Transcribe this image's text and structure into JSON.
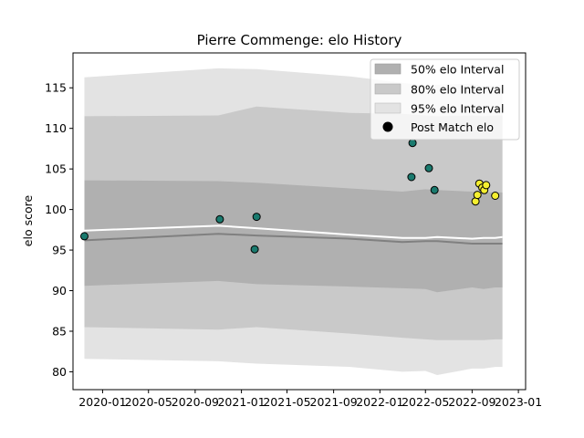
{
  "chart_data": {
    "type": "scatter",
    "title": "Pierre Commenge: elo History",
    "xlabel": "",
    "ylabel": "elo score",
    "xlim": [
      "2019-10-15",
      "2023-01-20"
    ],
    "ylim": [
      77.8,
      119.3
    ],
    "x_ticks": [
      "2020-01",
      "2020-05",
      "2020-09",
      "2021-01",
      "2021-05",
      "2021-09",
      "2022-01",
      "2022-05",
      "2022-09",
      "2023-01"
    ],
    "y_ticks": [
      80,
      85,
      90,
      95,
      100,
      105,
      110,
      115
    ],
    "legend_position": "top-right",
    "legend": [
      {
        "label": "50% elo Interval",
        "color": "#b0b0b0"
      },
      {
        "label": "80% elo Interval",
        "color": "#c9c9c9"
      },
      {
        "label": "95% elo Interval",
        "color": "#e3e3e3"
      },
      {
        "label": "Post Match elo",
        "color": "#000000"
      }
    ],
    "bands": {
      "x": [
        "2019-11-14",
        "2020-11-01",
        "2021-02-10",
        "2021-10-15",
        "2022-03-01",
        "2022-05-01",
        "2022-06-01",
        "2022-09-01",
        "2022-10-01",
        "2022-11-01",
        "2022-11-20"
      ],
      "p95_upper": [
        116.3,
        117.4,
        117.3,
        116.4,
        115.6,
        115.3,
        115.4,
        115.5,
        115.2,
        115.3,
        115.3
      ],
      "p95_lower": [
        81.6,
        81.3,
        81.0,
        80.6,
        80.0,
        80.1,
        79.6,
        80.4,
        80.4,
        80.6,
        80.6
      ],
      "p80_upper": [
        111.5,
        111.6,
        112.7,
        111.9,
        111.8,
        111.6,
        111.5,
        111.6,
        111.5,
        111.6,
        111.6
      ],
      "p80_lower": [
        85.5,
        85.2,
        85.5,
        84.7,
        84.2,
        84.0,
        83.9,
        83.9,
        83.9,
        84.0,
        84.0
      ],
      "p50_upper": [
        103.6,
        103.5,
        103.3,
        102.6,
        102.2,
        102.5,
        102.4,
        102.2,
        102.1,
        102.1,
        102.1
      ],
      "p50_lower": [
        90.6,
        91.2,
        90.8,
        90.5,
        90.3,
        90.2,
        89.8,
        90.4,
        90.2,
        90.4,
        90.4
      ]
    },
    "series": [
      {
        "x": [
          "2019-11-14",
          "2020-11-01",
          "2021-02-10",
          "2021-10-15",
          "2022-03-01",
          "2022-05-01",
          "2022-06-01",
          "2022-09-01",
          "2022-10-01",
          "2022-11-01",
          "2022-11-20"
        ],
        "values": [
          96.2,
          97.0,
          96.8,
          96.4,
          96.0,
          96.1,
          96.1,
          95.8,
          95.8,
          95.8,
          95.8
        ],
        "color": "#808080"
      },
      {
        "x": [
          "2019-11-14",
          "2020-11-01",
          "2021-02-10",
          "2021-10-15",
          "2022-03-01",
          "2022-05-01",
          "2022-06-01",
          "2022-09-01",
          "2022-10-01",
          "2022-11-01",
          "2022-11-20"
        ],
        "values": [
          97.4,
          98.0,
          97.7,
          96.9,
          96.5,
          96.5,
          96.6,
          96.4,
          96.5,
          96.5,
          96.6
        ],
        "color": "#ffffff"
      }
    ],
    "points": [
      {
        "x": "2019-11-14",
        "y": 96.7,
        "color": "#1a7a6e"
      },
      {
        "x": "2020-11-05",
        "y": 98.8,
        "color": "#1a7a6e"
      },
      {
        "x": "2021-02-05",
        "y": 95.1,
        "color": "#1a7a6e"
      },
      {
        "x": "2021-02-10",
        "y": 99.1,
        "color": "#1a7a6e"
      },
      {
        "x": "2022-03-25",
        "y": 104.0,
        "color": "#1a7a6e"
      },
      {
        "x": "2022-03-28",
        "y": 108.2,
        "color": "#1a7a6e"
      },
      {
        "x": "2022-05-10",
        "y": 105.1,
        "color": "#1a7a6e"
      },
      {
        "x": "2022-05-25",
        "y": 102.4,
        "color": "#1a7a6e"
      },
      {
        "x": "2022-09-10",
        "y": 101.0,
        "color": "#f5ef30"
      },
      {
        "x": "2022-09-15",
        "y": 101.8,
        "color": "#f5ef30"
      },
      {
        "x": "2022-09-20",
        "y": 103.2,
        "color": "#f5ef30"
      },
      {
        "x": "2022-09-28",
        "y": 102.7,
        "color": "#f5ef30"
      },
      {
        "x": "2022-10-03",
        "y": 102.4,
        "color": "#f5ef30"
      },
      {
        "x": "2022-10-08",
        "y": 103.0,
        "color": "#f5ef30"
      },
      {
        "x": "2022-11-01",
        "y": 101.7,
        "color": "#f5ef30"
      }
    ]
  }
}
